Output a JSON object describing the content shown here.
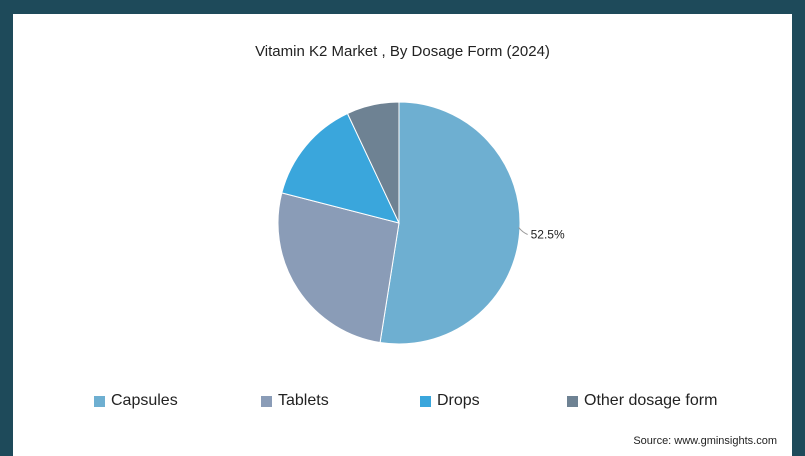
{
  "chart_data": {
    "type": "pie",
    "title": "Vitamin K2 Market , By Dosage Form (2024)",
    "slices": [
      {
        "label": "Capsules",
        "value": 52.5,
        "color": "#6eafd1",
        "data_label": "52.5%"
      },
      {
        "label": "Tablets",
        "value": 26.5,
        "color": "#8a9cb7",
        "data_label": ""
      },
      {
        "label": "Drops",
        "value": 14.0,
        "color": "#3aa6dc",
        "data_label": ""
      },
      {
        "label": "Other dosage form",
        "value": 7.0,
        "color": "#6e8293",
        "data_label": ""
      }
    ],
    "legend_position": "bottom"
  },
  "footer": {
    "source": "Source: www.gminsights.com"
  }
}
